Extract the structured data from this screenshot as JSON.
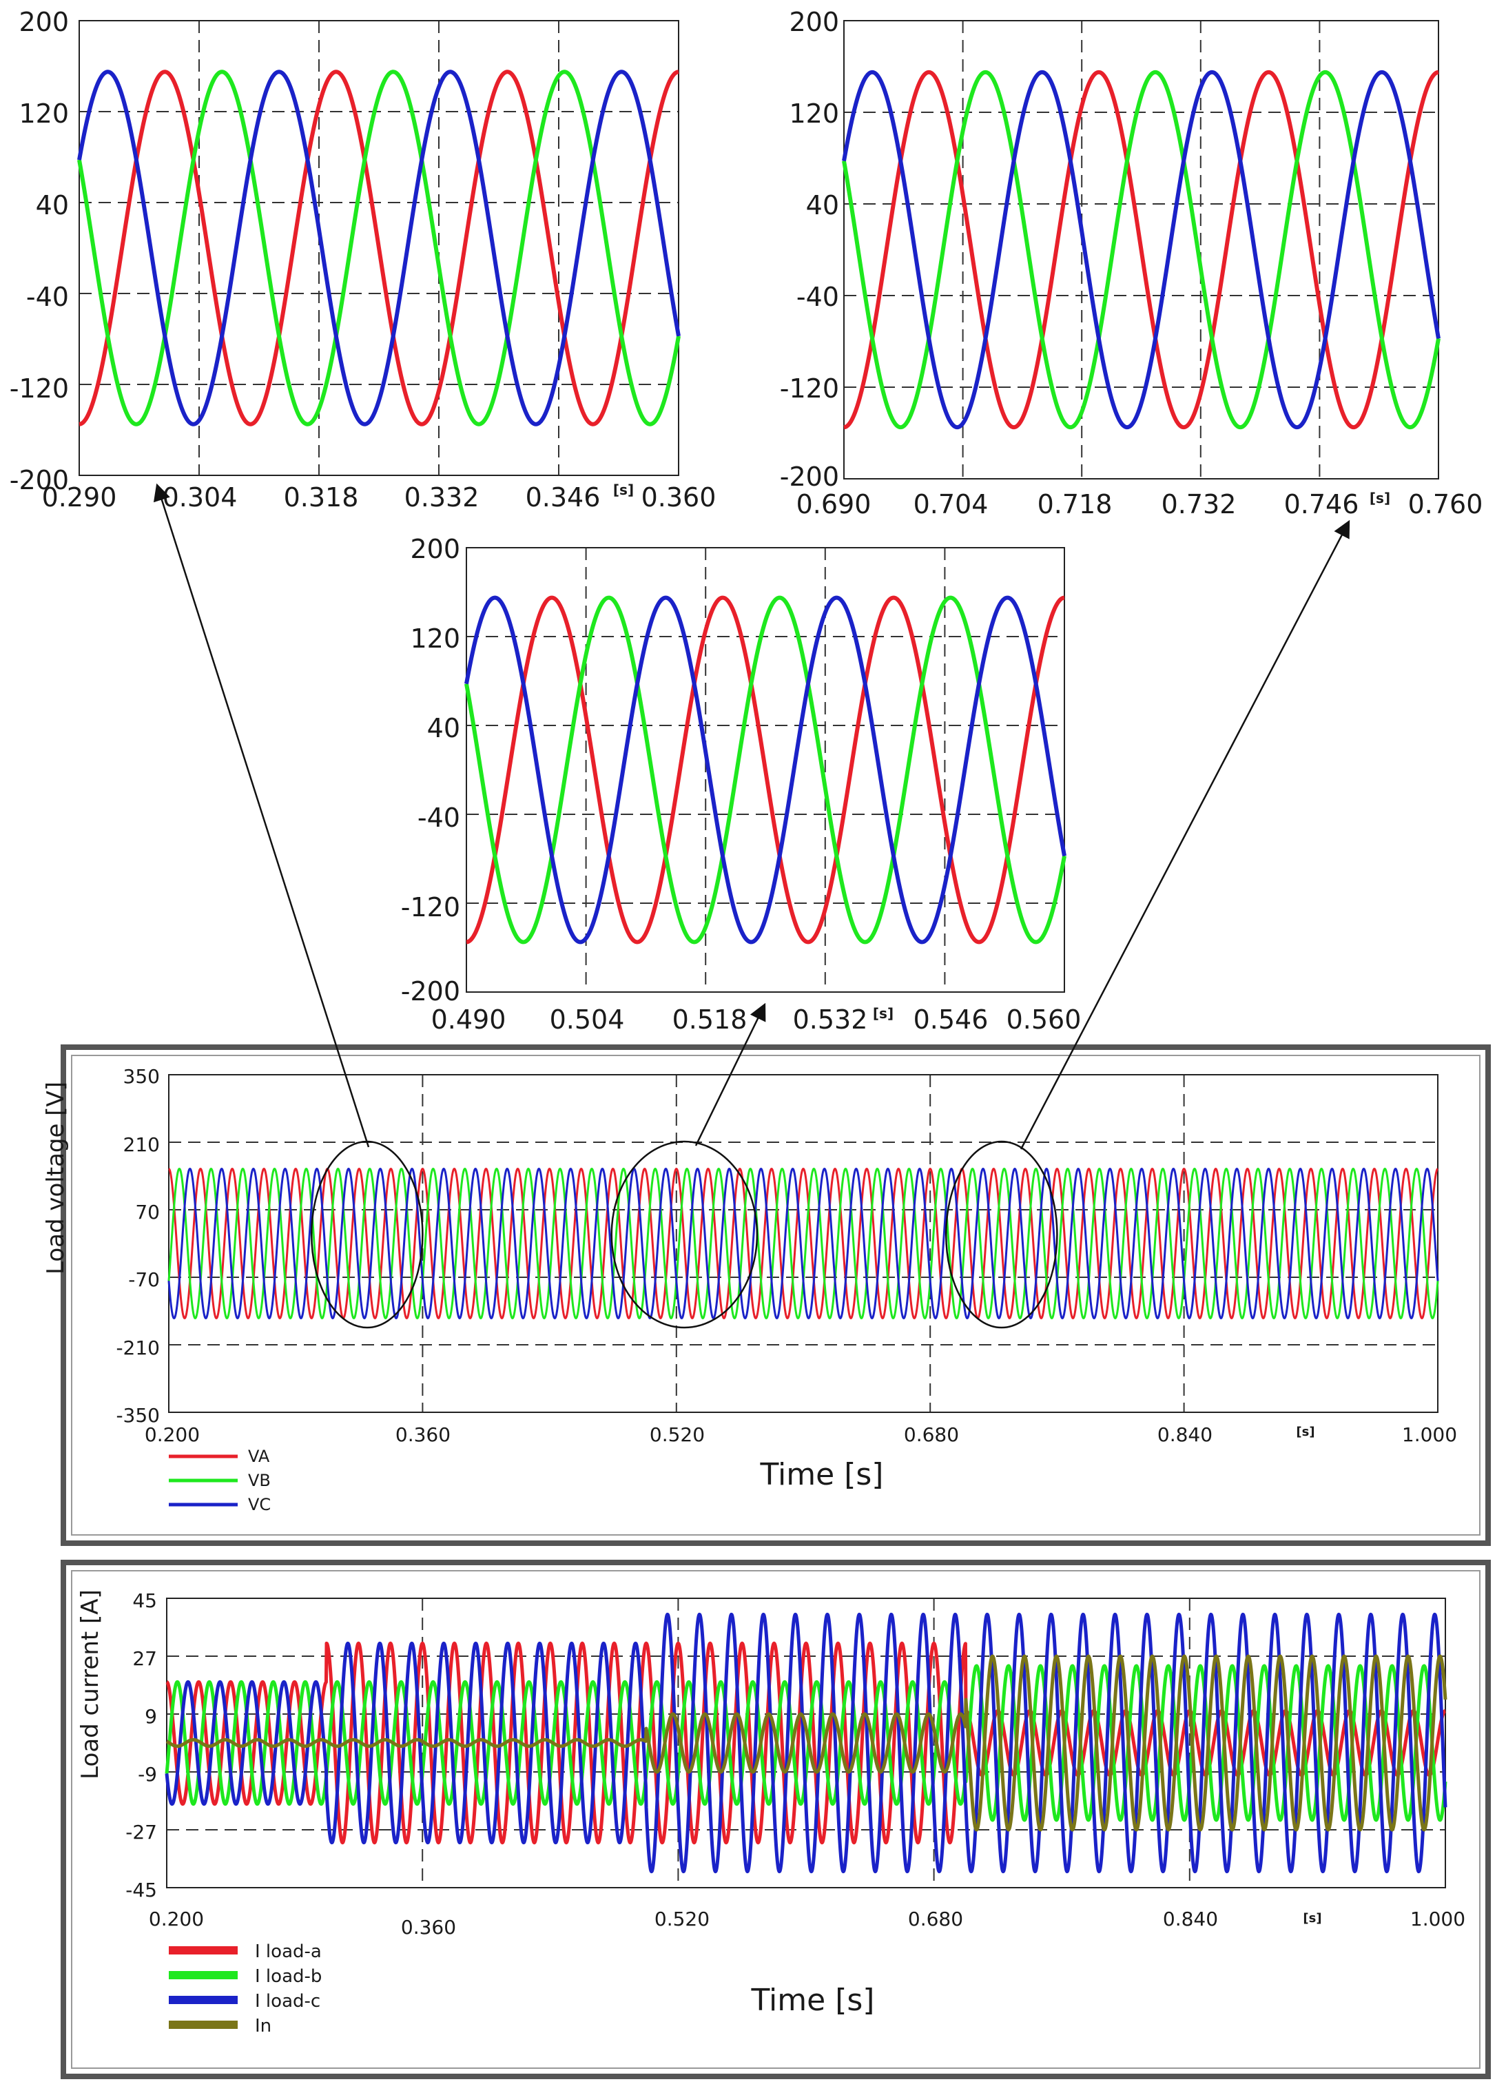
{
  "colors": {
    "phase_a": "#e8202a",
    "phase_b": "#1ee81e",
    "phase_c": "#1a22c8",
    "neutral": "#7a7518",
    "grid": "#333333",
    "axis": "#222222"
  },
  "chart_data": [
    {
      "id": "zoom-1",
      "type": "line",
      "xlim": [
        0.29,
        0.36
      ],
      "ylim": [
        -200,
        200
      ],
      "xticks": [
        "0.290",
        "0.304",
        "0.318",
        "0.332",
        "0.346",
        "0.360"
      ],
      "yticks": [
        "200",
        "120",
        "40",
        "-40",
        "-120",
        "-200"
      ],
      "unit": "[s]",
      "series": [
        {
          "name": "VA",
          "amplitude": 155,
          "frequency_hz": 50,
          "phase_deg": 90,
          "color_key": "phase_a"
        },
        {
          "name": "VB",
          "amplitude": 155,
          "frequency_hz": 50,
          "phase_deg": -30,
          "color_key": "phase_b"
        },
        {
          "name": "VC",
          "amplitude": 155,
          "frequency_hz": 50,
          "phase_deg": -150,
          "color_key": "phase_c"
        }
      ]
    },
    {
      "id": "zoom-2",
      "type": "line",
      "xlim": [
        0.69,
        0.76
      ],
      "ylim": [
        -200,
        200
      ],
      "xticks": [
        "0.690",
        "0.704",
        "0.718",
        "0.732",
        "0.746",
        "0.760"
      ],
      "yticks": [
        "200",
        "120",
        "40",
        "-40",
        "-120",
        "-200"
      ],
      "unit": "[s]",
      "series": [
        {
          "name": "VA",
          "amplitude": 155,
          "frequency_hz": 50,
          "phase_deg": 90,
          "color_key": "phase_a"
        },
        {
          "name": "VB",
          "amplitude": 155,
          "frequency_hz": 50,
          "phase_deg": -30,
          "color_key": "phase_b"
        },
        {
          "name": "VC",
          "amplitude": 155,
          "frequency_hz": 50,
          "phase_deg": -150,
          "color_key": "phase_c"
        }
      ]
    },
    {
      "id": "zoom-3",
      "type": "line",
      "xlim": [
        0.49,
        0.56
      ],
      "ylim": [
        -200,
        200
      ],
      "xticks": [
        "0.490",
        "0.504",
        "0.518",
        "0.532",
        "0.546",
        "0.560"
      ],
      "yticks": [
        "200",
        "120",
        "40",
        "-40",
        "-120",
        "-200"
      ],
      "unit": "[s]",
      "series": [
        {
          "name": "VA",
          "amplitude": 155,
          "frequency_hz": 50,
          "phase_deg": 90,
          "color_key": "phase_a"
        },
        {
          "name": "VB",
          "amplitude": 155,
          "frequency_hz": 50,
          "phase_deg": -30,
          "color_key": "phase_b"
        },
        {
          "name": "VC",
          "amplitude": 155,
          "frequency_hz": 50,
          "phase_deg": -150,
          "color_key": "phase_c"
        }
      ]
    },
    {
      "id": "load-voltage",
      "type": "line",
      "xlim": [
        0.2,
        1.0
      ],
      "ylim": [
        -350,
        350
      ],
      "xticks": [
        "0.200",
        "0.360",
        "0.520",
        "0.680",
        "0.840",
        "1.000"
      ],
      "yticks": [
        "350",
        "210",
        "70",
        "-70",
        "-210",
        "-350"
      ],
      "unit": "[s]",
      "xlabel": "Time [s]",
      "ylabel": "Load voltage [V]",
      "legend": [
        "VA",
        "VB",
        "VC"
      ],
      "series": [
        {
          "name": "VA",
          "amplitude": 155,
          "frequency_hz": 50,
          "phase_deg": 90,
          "color_key": "phase_a"
        },
        {
          "name": "VB",
          "amplitude": 155,
          "frequency_hz": 50,
          "phase_deg": -30,
          "color_key": "phase_b"
        },
        {
          "name": "VC",
          "amplitude": 155,
          "frequency_hz": 50,
          "phase_deg": -150,
          "color_key": "phase_c"
        }
      ],
      "highlighted_windows_s": [
        [
          0.29,
          0.36
        ],
        [
          0.49,
          0.56
        ],
        [
          0.69,
          0.76
        ]
      ]
    },
    {
      "id": "load-current",
      "type": "line",
      "xlim": [
        0.2,
        1.0
      ],
      "ylim": [
        -45,
        45
      ],
      "xticks": [
        "0.200",
        "0.360",
        "0.520",
        "0.680",
        "0.840",
        "1.000"
      ],
      "yticks": [
        "45",
        "27",
        "9",
        "-9",
        "-27",
        "-45"
      ],
      "unit": "[s]",
      "xlabel": "Time [s]",
      "ylabel": "Load current [A]",
      "legend": [
        "I load-a",
        "I load-b",
        "I load-c",
        "In"
      ],
      "series": [
        {
          "name": "I load-a",
          "color_key": "phase_a",
          "frequency_hz": 50,
          "phase_deg": 90,
          "amplitude_segments": [
            {
              "from": 0.2,
              "to": 0.3,
              "amp": 19
            },
            {
              "from": 0.3,
              "to": 0.5,
              "amp": 31
            },
            {
              "from": 0.5,
              "to": 0.7,
              "amp": 31
            },
            {
              "from": 0.7,
              "to": 1.0,
              "amp": 10
            }
          ]
        },
        {
          "name": "I load-b",
          "color_key": "phase_b",
          "frequency_hz": 50,
          "phase_deg": -30,
          "amplitude_segments": [
            {
              "from": 0.2,
              "to": 0.3,
              "amp": 19
            },
            {
              "from": 0.3,
              "to": 0.5,
              "amp": 19
            },
            {
              "from": 0.5,
              "to": 0.7,
              "amp": 19
            },
            {
              "from": 0.7,
              "to": 1.0,
              "amp": 24
            }
          ]
        },
        {
          "name": "I load-c",
          "color_key": "phase_c",
          "frequency_hz": 50,
          "phase_deg": -150,
          "amplitude_segments": [
            {
              "from": 0.2,
              "to": 0.3,
              "amp": 19
            },
            {
              "from": 0.3,
              "to": 0.5,
              "amp": 31
            },
            {
              "from": 0.5,
              "to": 0.7,
              "amp": 40
            },
            {
              "from": 0.7,
              "to": 1.0,
              "amp": 40
            }
          ]
        },
        {
          "name": "In",
          "color_key": "neutral",
          "frequency_hz": 50,
          "phase_deg": 150,
          "amplitude_segments": [
            {
              "from": 0.2,
              "to": 0.5,
              "amp": 1
            },
            {
              "from": 0.5,
              "to": 0.7,
              "amp": 9
            },
            {
              "from": 0.7,
              "to": 1.0,
              "amp": 27
            }
          ]
        }
      ]
    }
  ]
}
